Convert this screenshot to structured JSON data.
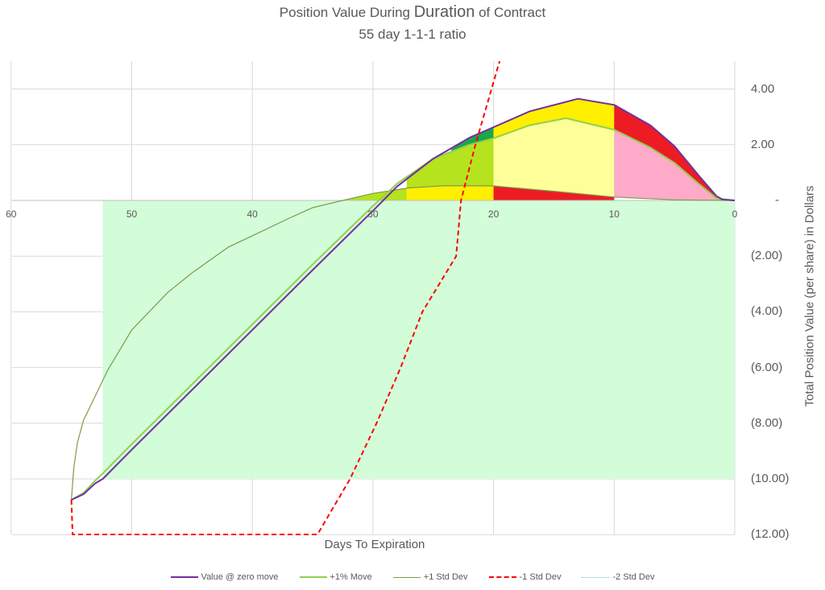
{
  "chart": {
    "title_prefix": "Position Value During ",
    "title_emphasis": "Duration",
    "title_suffix": " of Contract",
    "subtitle": "55 day 1-1-1 ratio",
    "xlabel": "Days To Expiration",
    "ylabel": "Total Position Value (per share) in Dollars",
    "x_ticks": [
      "60",
      "50",
      "40",
      "30",
      "20",
      "10",
      "0"
    ],
    "y_ticks": [
      "4.00",
      "2.00",
      "-",
      "(2.00)",
      "(4.00)",
      "(6.00)",
      "(8.00)",
      "(10.00)",
      "(12.00)"
    ]
  },
  "legend": [
    {
      "label": "Value @ zero move",
      "color": "#7030a0",
      "style": "solid"
    },
    {
      "label": "+1% Move",
      "color": "#92d050",
      "style": "solid"
    },
    {
      "label": "+1 Std Dev",
      "color": "#7f9a48",
      "style": "solid"
    },
    {
      "label": "-1 Std Dev",
      "color": "#ff0000",
      "style": "dashed"
    },
    {
      "label": "-2 Std Dev",
      "color": "#5bc0de",
      "style": "dotted"
    }
  ],
  "chart_data": {
    "type": "line",
    "title": "Position Value During Duration of Contract",
    "subtitle": "55 day 1-1-1 ratio",
    "xlabel": "Days To Expiration",
    "ylabel": "Total Position Value (per share) in Dollars",
    "xlim": [
      60,
      0
    ],
    "ylim": [
      -12,
      5
    ],
    "x_reversed": true,
    "grid": true,
    "legend_position": "bottom",
    "series": [
      {
        "name": "Value @ zero move",
        "color": "#7030a0",
        "x": [
          55,
          54,
          53,
          52.4,
          50,
          45,
          40,
          35,
          30,
          28,
          25,
          22,
          20,
          17,
          13,
          10,
          7,
          5,
          3,
          1.5,
          1,
          0
        ],
        "y": [
          -10.75,
          -10.55,
          -10.15,
          -10.0,
          -8.95,
          -6.8,
          -4.65,
          -2.5,
          -0.37,
          0.5,
          1.5,
          2.25,
          2.63,
          3.2,
          3.65,
          3.43,
          2.7,
          1.95,
          0.9,
          0.15,
          0.03,
          0
        ]
      },
      {
        "name": "+1% Move",
        "color": "#92d050",
        "x": [
          55,
          54,
          53,
          52.4,
          50,
          45,
          40,
          35,
          30,
          28,
          25,
          22,
          20,
          17,
          14,
          10,
          7,
          5,
          3,
          1.5,
          0
        ],
        "y": [
          -10.75,
          -10.5,
          -10.05,
          -9.8,
          -8.75,
          -6.6,
          -4.45,
          -2.3,
          -0.2,
          0.6,
          1.5,
          2.0,
          2.23,
          2.7,
          2.95,
          2.54,
          1.9,
          1.35,
          0.6,
          0.08,
          0
        ]
      },
      {
        "name": "+1 Std Dev",
        "color": "#7f9a48",
        "x": [
          55,
          54.8,
          54.5,
          54,
          53,
          52,
          50,
          47,
          45,
          42,
          40,
          37,
          35,
          32.5,
          30,
          27,
          24,
          20,
          15,
          10,
          5,
          0
        ],
        "y": [
          -10.75,
          -9.6,
          -8.7,
          -7.9,
          -7.0,
          -6.1,
          -4.65,
          -3.3,
          -2.6,
          -1.68,
          -1.27,
          -0.65,
          -0.26,
          0,
          0.25,
          0.45,
          0.53,
          0.52,
          0.33,
          0.12,
          0.02,
          0
        ]
      },
      {
        "name": "-1 Std Dev",
        "color": "#ff0000",
        "x": [
          55,
          54.9,
          34.6,
          31.9,
          29.7,
          27.7,
          25.9,
          23.1,
          22.7,
          21.5,
          19.5
        ],
        "y": [
          -10.75,
          -12.0,
          -12.0,
          -10.0,
          -8.0,
          -6.0,
          -4.0,
          -2.0,
          0,
          2.0,
          5.0
        ]
      },
      {
        "name": "-2 Std Dev",
        "color": "#5bc0de",
        "x": [
          55,
          55
        ],
        "y": [
          -10.75,
          -11.0
        ]
      }
    ],
    "shaded_regions": [
      {
        "name": "loss-zone",
        "color": "#d3fcd9",
        "x_range": [
          52.4,
          0
        ],
        "y_range": [
          -10,
          0
        ]
      },
      {
        "name": "lime-fill",
        "color": "#b5e31e"
      },
      {
        "name": "dark-green-wedge",
        "color": "#1aa84b"
      },
      {
        "name": "bright-yellow-fill",
        "color": "#ffef00"
      },
      {
        "name": "pale-yellow-fill",
        "color": "#ffff99"
      },
      {
        "name": "red-fill",
        "color": "#ed1c24"
      },
      {
        "name": "pink-fill",
        "color": "#ffaac8"
      }
    ]
  }
}
